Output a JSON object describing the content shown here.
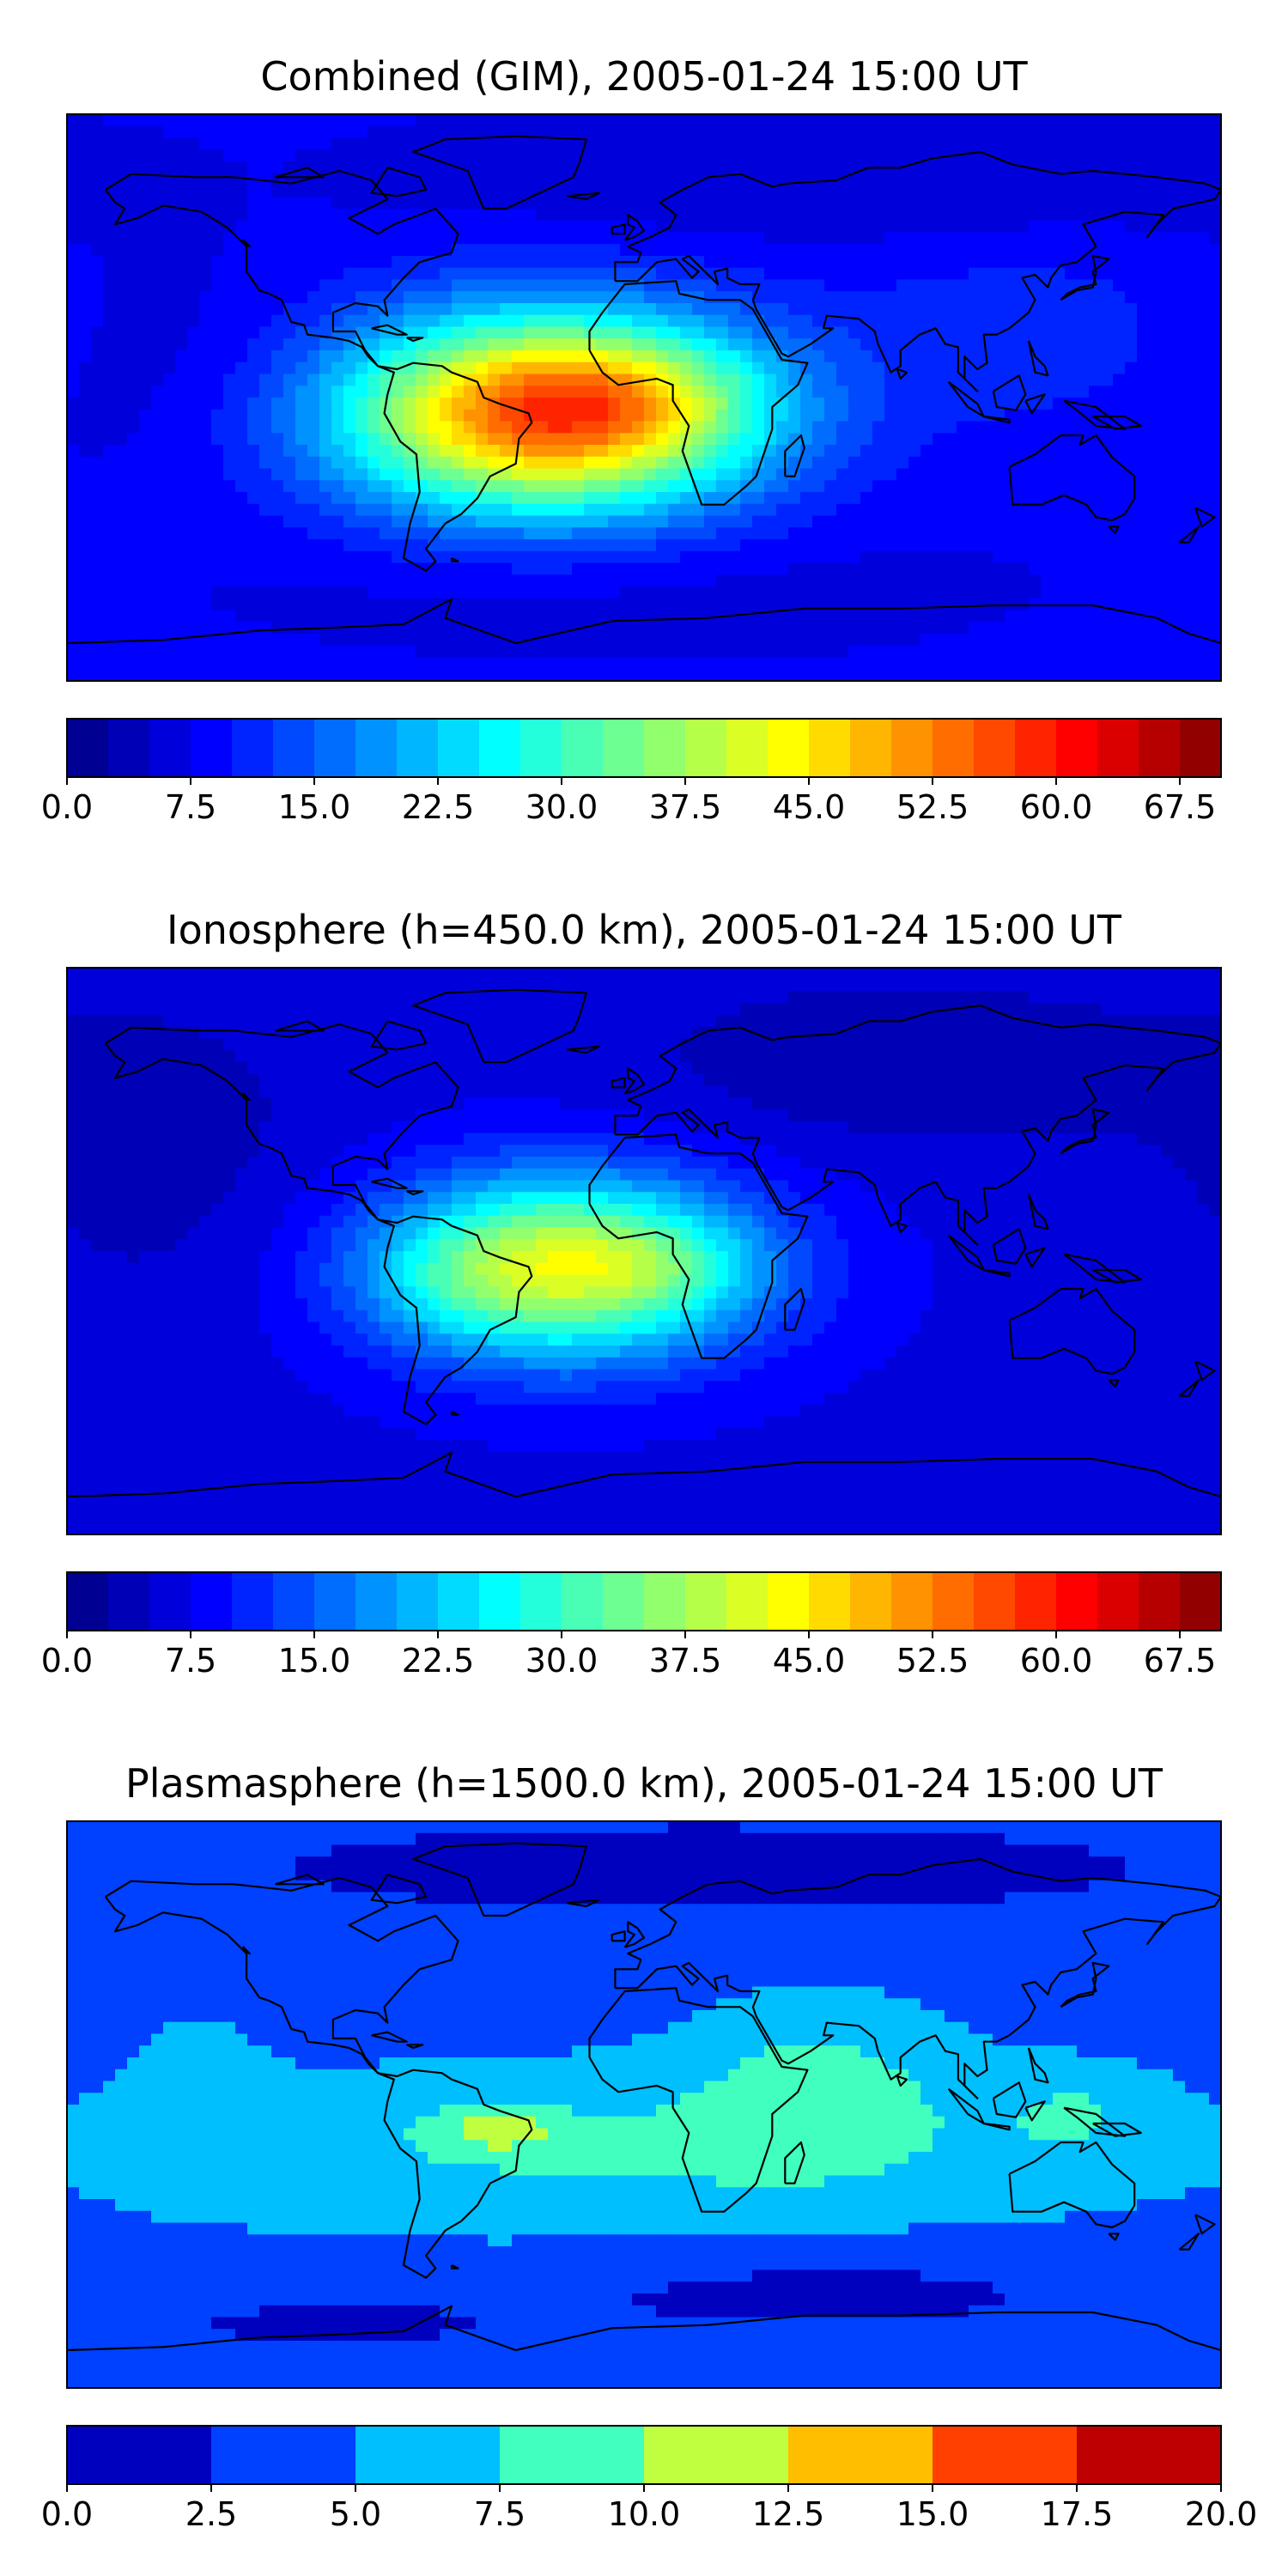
{
  "figure": {
    "panels": [
      {
        "title": "Combined (GIM), 2005-01-24 15:00 UT",
        "colorbar": {
          "min": 0,
          "max": 70,
          "levels": 28,
          "ticks": [
            "0.0",
            "7.5",
            "15.0",
            "22.5",
            "30.0",
            "37.5",
            "45.0",
            "52.5",
            "60.0",
            "67.5"
          ]
        }
      },
      {
        "title": "Ionosphere  (h=450.0 km), 2005-01-24 15:00 UT",
        "colorbar": {
          "min": 0,
          "max": 70,
          "levels": 28,
          "ticks": [
            "0.0",
            "7.5",
            "15.0",
            "22.5",
            "30.0",
            "37.5",
            "45.0",
            "52.5",
            "60.0",
            "67.5"
          ]
        }
      },
      {
        "title": "Plasmasphere (h=1500.0 km), 2005-01-24 15:00 UT",
        "colorbar": {
          "min": 0,
          "max": 20,
          "levels": 8,
          "ticks": [
            "0.0",
            "2.5",
            "5.0",
            "7.5",
            "10.0",
            "12.5",
            "15.0",
            "17.5",
            "20.0"
          ]
        }
      }
    ]
  },
  "chart_data": [
    {
      "type": "heatmap",
      "title": "Combined (GIM), 2005-01-24 15:00 UT",
      "xlim": [
        -180,
        180
      ],
      "ylim": [
        -90,
        90
      ],
      "colormap": "jet",
      "grid": false,
      "colorbar": {
        "position": "bottom",
        "range": [
          0,
          70
        ],
        "step": 2.5
      },
      "background": 8,
      "features": [
        {
          "lon": -30,
          "lat": -5,
          "value": 48,
          "sigma_lon": 45,
          "sigma_lat": 22
        },
        {
          "lon": 0,
          "lat": 0,
          "value": 6,
          "sigma_lon": 28,
          "sigma_lat": 12
        },
        {
          "lon": -10,
          "lat": -60,
          "value": -2,
          "sigma_lon": 80,
          "sigma_lat": 15
        },
        {
          "lon": 120,
          "lat": 20,
          "value": 4,
          "sigma_lon": 40,
          "sigma_lat": 20
        },
        {
          "lon": 60,
          "lat": 70,
          "value": -3,
          "sigma_lon": 90,
          "sigma_lat": 15
        },
        {
          "lon": -150,
          "lat": 10,
          "value": -2,
          "sigma_lon": 40,
          "sigma_lat": 25
        }
      ]
    },
    {
      "type": "heatmap",
      "title": "Ionosphere  (h=450.0 km), 2005-01-24 15:00 UT",
      "xlim": [
        -180,
        180
      ],
      "ylim": [
        -90,
        90
      ],
      "colormap": "jet",
      "grid": false,
      "colorbar": {
        "position": "bottom",
        "range": [
          0,
          70
        ],
        "step": 2.5
      },
      "background": 7,
      "features": [
        {
          "lon": -25,
          "lat": -5,
          "value": 35,
          "sigma_lon": 40,
          "sigma_lat": 20
        },
        {
          "lon": 10,
          "lat": -5,
          "value": 4,
          "sigma_lon": 20,
          "sigma_lat": 10
        },
        {
          "lon": -60,
          "lat": -10,
          "value": 3,
          "sigma_lon": 18,
          "sigma_lat": 12
        },
        {
          "lon": 80,
          "lat": 60,
          "value": -4,
          "sigma_lon": 60,
          "sigma_lat": 20
        },
        {
          "lon": -150,
          "lat": 30,
          "value": -3,
          "sigma_lon": 40,
          "sigma_lat": 40
        }
      ]
    },
    {
      "type": "heatmap",
      "title": "Plasmasphere (h=1500.0 km), 2005-01-24 15:00 UT",
      "xlim": [
        -180,
        180
      ],
      "ylim": [
        -90,
        90
      ],
      "colormap": "jet",
      "grid": false,
      "colorbar": {
        "position": "bottom",
        "range": [
          0,
          20
        ],
        "step": 2.5
      },
      "background": 4.2,
      "features": [
        {
          "lon": -5,
          "lat": -15,
          "value": 3.5,
          "sigma_lon": 110,
          "sigma_lat": 18
        },
        {
          "lon": -45,
          "lat": -8,
          "value": 4.5,
          "sigma_lon": 14,
          "sigma_lat": 5
        },
        {
          "lon": 55,
          "lat": 8,
          "value": 3.5,
          "sigma_lon": 28,
          "sigma_lat": 18
        },
        {
          "lon": 135,
          "lat": -2,
          "value": 2.5,
          "sigma_lon": 18,
          "sigma_lat": 10
        },
        {
          "lon": -140,
          "lat": 5,
          "value": 1.5,
          "sigma_lon": 15,
          "sigma_lat": 18
        },
        {
          "lon": 20,
          "lat": 75,
          "value": -2.5,
          "sigma_lon": 150,
          "sigma_lat": 15
        },
        {
          "lon": 60,
          "lat": -60,
          "value": -2.5,
          "sigma_lon": 60,
          "sigma_lat": 10
        },
        {
          "lon": -100,
          "lat": -70,
          "value": -2,
          "sigma_lon": 60,
          "sigma_lat": 10
        }
      ]
    }
  ],
  "coastlines": [
    [
      [
        -168,
        66
      ],
      [
        -160,
        71
      ],
      [
        -140,
        70
      ],
      [
        -128,
        70
      ],
      [
        -110,
        68
      ],
      [
        -95,
        72
      ],
      [
        -85,
        69
      ],
      [
        -80,
        63
      ],
      [
        -92,
        57
      ],
      [
        -83,
        52
      ],
      [
        -78,
        55
      ],
      [
        -65,
        60
      ],
      [
        -58,
        52
      ],
      [
        -60,
        46
      ],
      [
        -70,
        43
      ],
      [
        -75,
        38
      ],
      [
        -81,
        31
      ],
      [
        -80,
        26
      ],
      [
        -83,
        29
      ],
      [
        -90,
        30
      ],
      [
        -97,
        27
      ],
      [
        -97,
        21
      ],
      [
        -90,
        21
      ],
      [
        -87,
        15
      ],
      [
        -83,
        10
      ],
      [
        -78,
        8
      ],
      [
        -80,
        1
      ],
      [
        -81,
        -5
      ],
      [
        -76,
        -14
      ],
      [
        -71,
        -18
      ],
      [
        -70,
        -30
      ],
      [
        -73,
        -40
      ],
      [
        -75,
        -51
      ],
      [
        -68,
        -55
      ],
      [
        -65,
        -52
      ],
      [
        -68,
        -48
      ],
      [
        -62,
        -40
      ],
      [
        -57,
        -37
      ],
      [
        -52,
        -32
      ],
      [
        -48,
        -25
      ],
      [
        -40,
        -21
      ],
      [
        -39,
        -13
      ],
      [
        -35,
        -8
      ],
      [
        -36,
        -5
      ],
      [
        -45,
        -2
      ],
      [
        -50,
        0
      ],
      [
        -52,
        5
      ],
      [
        -60,
        8
      ],
      [
        -63,
        10
      ],
      [
        -72,
        11
      ],
      [
        -77,
        9
      ],
      [
        -83,
        10
      ],
      [
        -86,
        13
      ],
      [
        -88,
        16
      ],
      [
        -92,
        18
      ],
      [
        -97,
        19
      ],
      [
        -105,
        20
      ],
      [
        -106,
        23
      ],
      [
        -110,
        24
      ],
      [
        -113,
        31
      ],
      [
        -117,
        33
      ],
      [
        -120,
        34
      ],
      [
        -124,
        40
      ],
      [
        -124,
        48
      ],
      [
        -130,
        54
      ],
      [
        -138,
        59
      ],
      [
        -150,
        61
      ],
      [
        -158,
        57
      ],
      [
        -165,
        55
      ],
      [
        -162,
        60
      ],
      [
        -165,
        62
      ],
      [
        -168,
        66
      ]
    ],
    [
      [
        -17,
        15
      ],
      [
        -17,
        21
      ],
      [
        -13,
        27
      ],
      [
        -6,
        36
      ],
      [
        10,
        37
      ],
      [
        11,
        33
      ],
      [
        20,
        31
      ],
      [
        30,
        31
      ],
      [
        34,
        28
      ],
      [
        43,
        12
      ],
      [
        51,
        11
      ],
      [
        48,
        4
      ],
      [
        40,
        -3
      ],
      [
        40,
        -10
      ],
      [
        35,
        -25
      ],
      [
        32,
        -28
      ],
      [
        25,
        -34
      ],
      [
        18,
        -34
      ],
      [
        12,
        -17
      ],
      [
        14,
        -9
      ],
      [
        9,
        -1
      ],
      [
        9,
        4
      ],
      [
        4,
        6
      ],
      [
        -8,
        4
      ],
      [
        -13,
        8
      ],
      [
        -17,
        15
      ]
    ],
    [
      [
        -9,
        37
      ],
      [
        -9,
        43
      ],
      [
        -2,
        43
      ],
      [
        -1,
        46
      ],
      [
        -5,
        48
      ],
      [
        2,
        51
      ],
      [
        8,
        54
      ],
      [
        10,
        58
      ],
      [
        5,
        62
      ],
      [
        12,
        66
      ],
      [
        20,
        70
      ],
      [
        30,
        71
      ],
      [
        40,
        67
      ],
      [
        45,
        68
      ],
      [
        60,
        69
      ],
      [
        70,
        73
      ],
      [
        80,
        73
      ],
      [
        90,
        76
      ],
      [
        105,
        78
      ],
      [
        115,
        74
      ],
      [
        130,
        71
      ],
      [
        140,
        72
      ],
      [
        160,
        70
      ],
      [
        175,
        68
      ],
      [
        180,
        66
      ],
      [
        178,
        63
      ],
      [
        165,
        60
      ],
      [
        160,
        55
      ],
      [
        157,
        51
      ],
      [
        162,
        58
      ],
      [
        150,
        59
      ],
      [
        137,
        55
      ],
      [
        141,
        48
      ],
      [
        135,
        43
      ],
      [
        130,
        42
      ],
      [
        127,
        38
      ],
      [
        126,
        35
      ],
      [
        122,
        39
      ],
      [
        118,
        38
      ],
      [
        122,
        31
      ],
      [
        120,
        27
      ],
      [
        114,
        22
      ],
      [
        110,
        20
      ],
      [
        106,
        20
      ],
      [
        107,
        11
      ],
      [
        104,
        9
      ],
      [
        100,
        13
      ],
      [
        100,
        6
      ],
      [
        104,
        2
      ],
      [
        98,
        8
      ],
      [
        98,
        16
      ],
      [
        94,
        17
      ],
      [
        91,
        22
      ],
      [
        86,
        20
      ],
      [
        80,
        15
      ],
      [
        80,
        10
      ],
      [
        77,
        8
      ],
      [
        73,
        17
      ],
      [
        72,
        21
      ],
      [
        67,
        25
      ],
      [
        57,
        26
      ],
      [
        56,
        22
      ],
      [
        59,
        22
      ],
      [
        52,
        17
      ],
      [
        45,
        13
      ],
      [
        43,
        14
      ],
      [
        39,
        21
      ],
      [
        35,
        28
      ],
      [
        34,
        31
      ],
      [
        36,
        36
      ],
      [
        30,
        36
      ],
      [
        26,
        38
      ],
      [
        26,
        41
      ],
      [
        22,
        40
      ],
      [
        23,
        36
      ],
      [
        19,
        40
      ],
      [
        14,
        45
      ],
      [
        12,
        44
      ],
      [
        17,
        40
      ],
      [
        15,
        38
      ],
      [
        10,
        44
      ],
      [
        4,
        43
      ],
      [
        -2,
        37
      ],
      [
        -9,
        37
      ]
    ],
    [
      [
        114,
        -22
      ],
      [
        122,
        -18
      ],
      [
        130,
        -12
      ],
      [
        137,
        -12
      ],
      [
        136,
        -15
      ],
      [
        141,
        -12
      ],
      [
        146,
        -19
      ],
      [
        153,
        -25
      ],
      [
        153,
        -32
      ],
      [
        150,
        -37
      ],
      [
        146,
        -39
      ],
      [
        141,
        -38
      ],
      [
        138,
        -34
      ],
      [
        131,
        -31
      ],
      [
        124,
        -34
      ],
      [
        115,
        -34
      ],
      [
        114,
        -22
      ]
    ],
    [
      [
        -180,
        -78
      ],
      [
        -150,
        -77
      ],
      [
        -120,
        -74
      ],
      [
        -95,
        -73
      ],
      [
        -75,
        -72
      ],
      [
        -60,
        -64
      ],
      [
        -62,
        -70
      ],
      [
        -40,
        -78
      ],
      [
        -10,
        -71
      ],
      [
        20,
        -70
      ],
      [
        50,
        -67
      ],
      [
        80,
        -67
      ],
      [
        110,
        -66
      ],
      [
        140,
        -66
      ],
      [
        160,
        -70
      ],
      [
        170,
        -75
      ],
      [
        180,
        -78
      ]
    ],
    [
      [
        -50,
        60
      ],
      [
        -43,
        60
      ],
      [
        -22,
        70
      ],
      [
        -20,
        75
      ],
      [
        -18,
        82
      ],
      [
        -40,
        83
      ],
      [
        -62,
        82
      ],
      [
        -72,
        78
      ],
      [
        -55,
        72
      ],
      [
        -50,
        60
      ]
    ],
    [
      [
        -6,
        50
      ],
      [
        -3,
        51
      ],
      [
        0,
        53
      ],
      [
        -2,
        56
      ],
      [
        -5,
        58
      ],
      [
        -5,
        55
      ],
      [
        -3,
        54
      ],
      [
        -6,
        50
      ]
    ],
    [
      [
        -10,
        52
      ],
      [
        -6,
        52
      ],
      [
        -6,
        55
      ],
      [
        -10,
        54
      ],
      [
        -10,
        52
      ]
    ],
    [
      [
        130,
        31
      ],
      [
        135,
        34
      ],
      [
        140,
        35
      ],
      [
        141,
        40
      ],
      [
        140,
        45
      ],
      [
        145,
        44
      ],
      [
        140,
        40
      ],
      [
        141,
        36
      ],
      [
        136,
        35
      ],
      [
        132,
        33
      ],
      [
        130,
        31
      ]
    ],
    [
      [
        44,
        -25
      ],
      [
        47,
        -25
      ],
      [
        50,
        -16
      ],
      [
        49,
        -12
      ],
      [
        44,
        -17
      ],
      [
        44,
        -25
      ]
    ],
    [
      [
        95,
        5
      ],
      [
        104,
        -2
      ],
      [
        106,
        -6
      ],
      [
        101,
        -3
      ],
      [
        95,
        5
      ]
    ],
    [
      [
        106,
        -6
      ],
      [
        114,
        -8
      ],
      [
        114,
        -7
      ],
      [
        106,
        -6
      ]
    ],
    [
      [
        109,
        2
      ],
      [
        117,
        7
      ],
      [
        119,
        1
      ],
      [
        116,
        -4
      ],
      [
        110,
        -3
      ],
      [
        109,
        2
      ]
    ],
    [
      [
        119,
        -1
      ],
      [
        125,
        1
      ],
      [
        121,
        -5
      ],
      [
        119,
        -1
      ]
    ],
    [
      [
        131,
        -1
      ],
      [
        141,
        -3
      ],
      [
        150,
        -10
      ],
      [
        141,
        -9
      ],
      [
        135,
        -4
      ],
      [
        131,
        -1
      ]
    ],
    [
      [
        120,
        18
      ],
      [
        122,
        13
      ],
      [
        125,
        10
      ],
      [
        126,
        7
      ],
      [
        122,
        8
      ],
      [
        120,
        18
      ]
    ],
    [
      [
        172,
        -35
      ],
      [
        178,
        -38
      ],
      [
        174,
        -41
      ],
      [
        172,
        -35
      ]
    ],
    [
      [
        167,
        -46
      ],
      [
        173,
        -41
      ],
      [
        170,
        -46
      ],
      [
        167,
        -46
      ]
    ],
    [
      [
        -85,
        22
      ],
      [
        -77,
        20
      ],
      [
        -74,
        20
      ],
      [
        -80,
        23
      ],
      [
        -85,
        22
      ]
    ],
    [
      [
        -74,
        19
      ],
      [
        -69,
        19
      ],
      [
        -72,
        18
      ],
      [
        -74,
        19
      ]
    ],
    [
      [
        -24,
        64
      ],
      [
        -14,
        65
      ],
      [
        -18,
        63
      ],
      [
        -24,
        64
      ]
    ],
    [
      [
        -80,
        73
      ],
      [
        -70,
        70
      ],
      [
        -68,
        66
      ],
      [
        -77,
        64
      ],
      [
        -85,
        65
      ],
      [
        -80,
        73
      ]
    ],
    [
      [
        -115,
        70
      ],
      [
        -105,
        73
      ],
      [
        -100,
        70
      ],
      [
        -115,
        70
      ]
    ],
    [
      [
        140,
        -6
      ],
      [
        150,
        -6
      ],
      [
        155,
        -9
      ],
      [
        147,
        -10
      ],
      [
        140,
        -6
      ]
    ],
    [
      [
        145,
        -41
      ],
      [
        148,
        -41
      ],
      [
        147,
        -43
      ],
      [
        145,
        -41
      ]
    ],
    [
      [
        -60,
        -51
      ],
      [
        -58,
        -52
      ],
      [
        -60,
        -52
      ],
      [
        -60,
        -51
      ]
    ],
    [
      [
        79,
        9
      ],
      [
        82,
        8
      ],
      [
        80,
        6
      ],
      [
        79,
        9
      ]
    ],
    [
      [
        -125,
        49
      ],
      [
        -123,
        48
      ],
      [
        -125,
        50
      ],
      [
        -125,
        49
      ]
    ]
  ]
}
